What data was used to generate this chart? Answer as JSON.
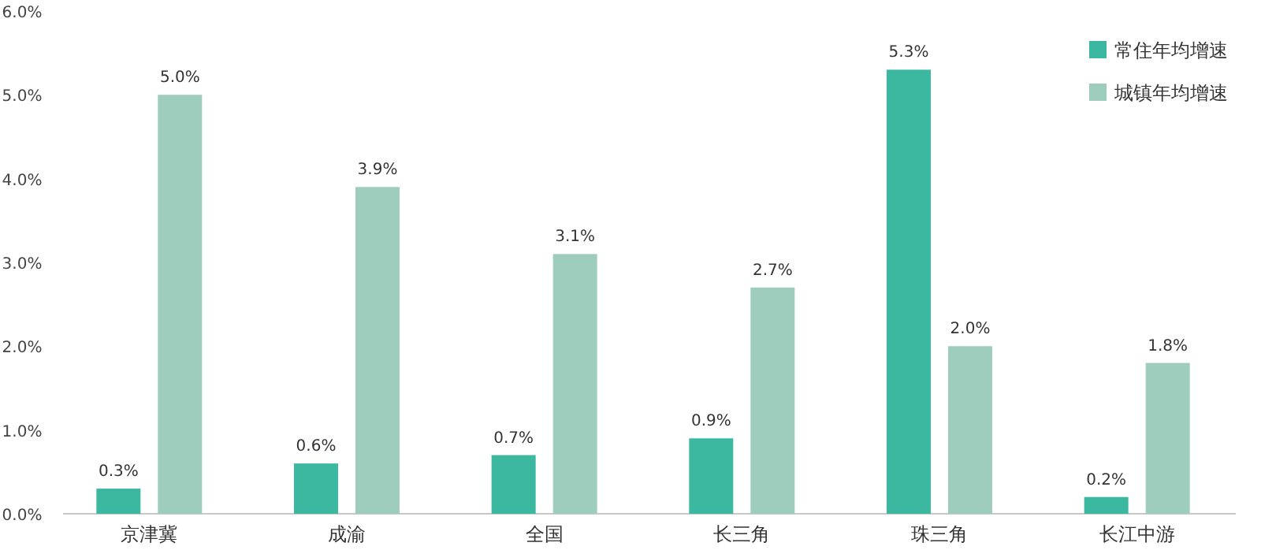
{
  "chart_data": {
    "type": "bar",
    "categories": [
      "京津冀",
      "成渝",
      "全国",
      "长三角",
      "珠三角",
      "长江中游"
    ],
    "series": [
      {
        "name": "常住年均增速",
        "color": "#3bb89f",
        "values": [
          0.3,
          0.6,
          0.7,
          0.9,
          5.3,
          0.2
        ],
        "value_labels": [
          "0.3%",
          "0.6%",
          "0.7%",
          "0.9%",
          "5.3%",
          "0.2%"
        ]
      },
      {
        "name": "城镇年均增速",
        "color": "#9fcdbd",
        "values": [
          5.0,
          3.9,
          3.1,
          2.7,
          2.0,
          1.8
        ],
        "value_labels": [
          "5.0%",
          "3.9%",
          "3.1%",
          "2.7%",
          "2.0%",
          "1.8%"
        ]
      }
    ],
    "ylim": [
      0,
      6
    ],
    "yticks": [
      {
        "value": 0,
        "label": "0.0%"
      },
      {
        "value": 1,
        "label": "1.0%"
      },
      {
        "value": 2,
        "label": "2.0%"
      },
      {
        "value": 3,
        "label": "3.0%"
      },
      {
        "value": 4,
        "label": "4.0%"
      },
      {
        "value": 5,
        "label": "5.0%"
      },
      {
        "value": 6,
        "label": "6.0%"
      }
    ],
    "grid": false,
    "legend": "top right"
  }
}
